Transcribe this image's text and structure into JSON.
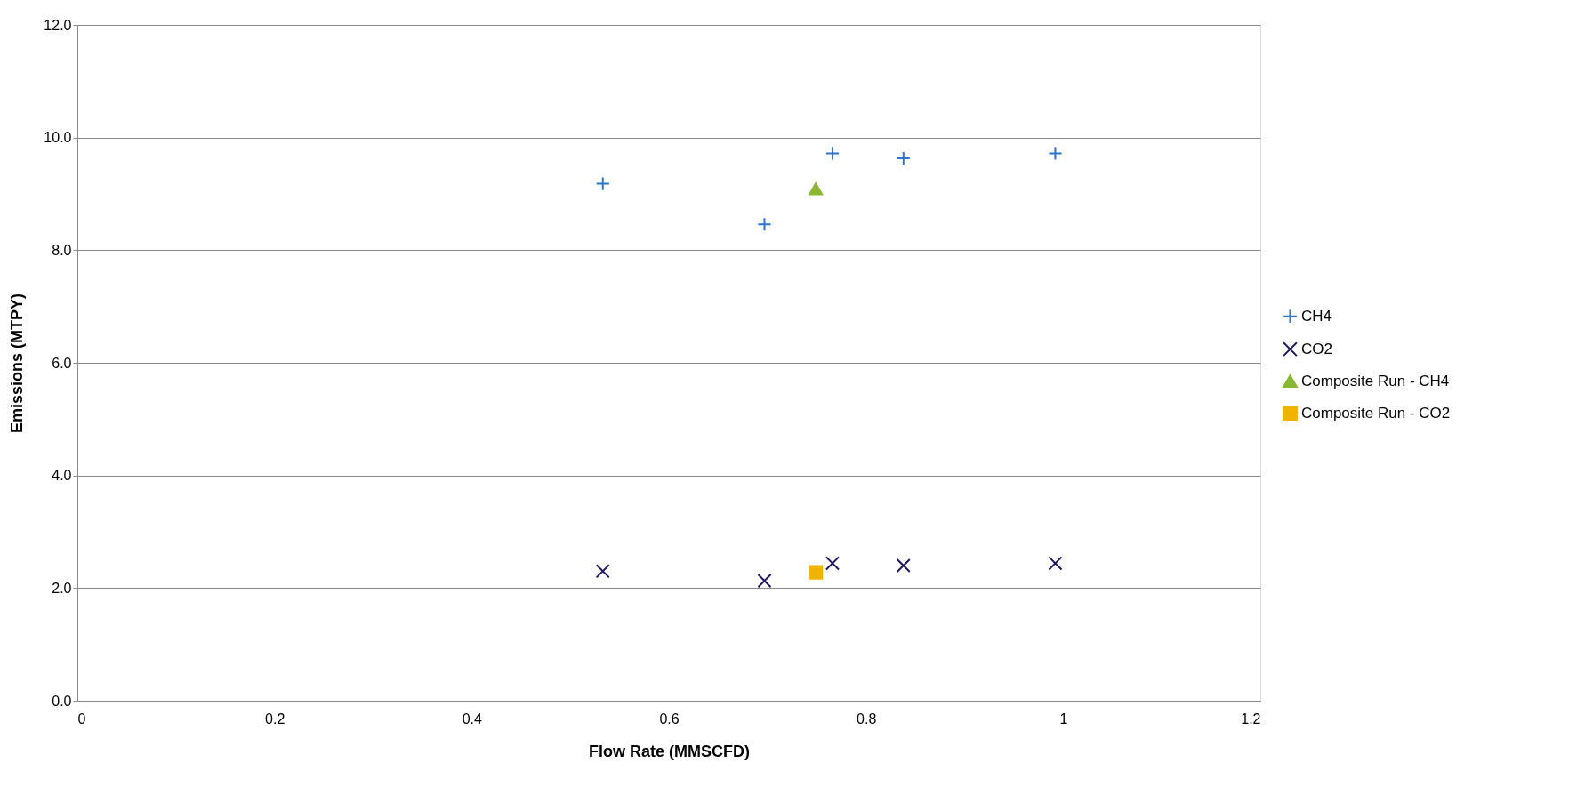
{
  "chart_data": {
    "type": "scatter",
    "xlabel": "Flow Rate (MMSCFD)",
    "ylabel": "Emissions (MTPY)",
    "xlim": [
      0,
      1.2
    ],
    "xticks": [
      0,
      0.2,
      0.4,
      0.6,
      0.8,
      1,
      1.2
    ],
    "ylim": [
      0,
      12
    ],
    "yticks": [
      {
        "value": 0,
        "label": "0.0"
      },
      {
        "value": 2,
        "label": "2.0"
      },
      {
        "value": 4,
        "label": "4.0"
      },
      {
        "value": 6,
        "label": "6.0"
      },
      {
        "value": 8,
        "label": "8.0"
      },
      {
        "value": 10,
        "label": "10.0"
      },
      {
        "value": 12,
        "label": "12.0"
      }
    ],
    "grid": "y",
    "legend": "right",
    "series": [
      {
        "name": "CH4",
        "color": "#2e75c8",
        "marker": "plus",
        "x": [
          0.533,
          0.697,
          0.766,
          0.838,
          0.992
        ],
        "values": [
          9.18,
          8.46,
          9.72,
          9.63,
          9.72
        ]
      },
      {
        "name": "CO2",
        "color": "#1f1a5e",
        "marker": "cross",
        "x": [
          0.533,
          0.697,
          0.766,
          0.838,
          0.992
        ],
        "values": [
          2.3,
          2.13,
          2.44,
          2.4,
          2.44
        ]
      },
      {
        "name": "Composite Run - CH4",
        "color": "#8ab833",
        "marker": "triangle",
        "x": [
          0.749
        ],
        "values": [
          9.09
        ]
      },
      {
        "name": "Composite Run - CO2",
        "color": "#f0b400",
        "marker": "square",
        "x": [
          0.749
        ],
        "values": [
          2.28
        ]
      }
    ]
  }
}
